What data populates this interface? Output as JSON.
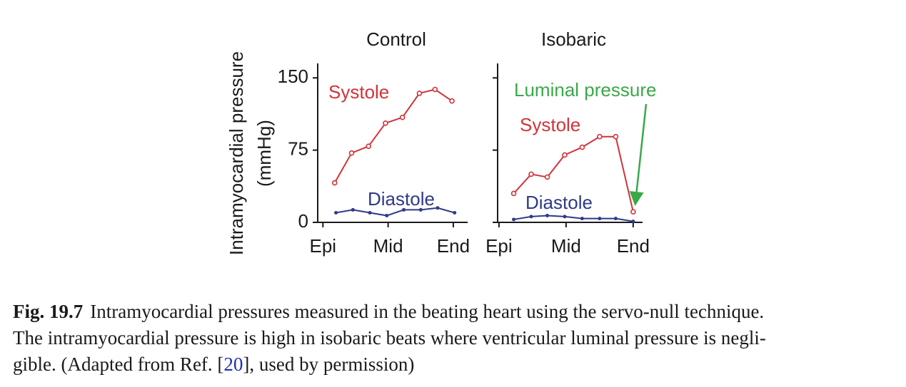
{
  "chart_data": [
    {
      "type": "line",
      "title": "Control",
      "ylabel": [
        "Intramyocardial pressure",
        "(mmHg)"
      ],
      "xlim": [
        -0.04,
        1.11
      ],
      "ylim": [
        0,
        165
      ],
      "xticks": [
        {
          "value": 0,
          "label": "Epi"
        },
        {
          "value": 0.5,
          "label": "Mid"
        },
        {
          "value": 1,
          "label": "End"
        }
      ],
      "yticks": [
        0,
        75,
        150
      ],
      "ytick_labels": true,
      "series": [
        {
          "name": "Systole",
          "color": "#d0343a",
          "marker": "open",
          "x": [
            0.09,
            0.22,
            0.35,
            0.48,
            0.61,
            0.74,
            0.86,
            0.99
          ],
          "values": [
            41,
            72,
            79,
            103,
            109,
            134,
            138,
            126
          ]
        },
        {
          "name": "Diastole",
          "color": "#2f3a86",
          "marker": "filled",
          "x": [
            0.1,
            0.23,
            0.36,
            0.49,
            0.62,
            0.75,
            0.88,
            1.01
          ],
          "values": [
            10,
            13,
            10,
            7,
            13,
            13,
            15,
            10
          ]
        }
      ]
    },
    {
      "type": "line",
      "title": "Isobaric",
      "xlim": [
        -0.01,
        1.07
      ],
      "ylim": [
        0,
        165
      ],
      "xticks": [
        {
          "value": 0,
          "label": "Epi"
        },
        {
          "value": 0.5,
          "label": "Mid"
        },
        {
          "value": 1,
          "label": "End"
        }
      ],
      "yticks": [
        0,
        75,
        150
      ],
      "ytick_labels": false,
      "series": [
        {
          "name": "Luminal pressure",
          "color": "#3aa849",
          "marker": "filled",
          "x": [
            1.0
          ],
          "values": [
            11
          ]
        },
        {
          "name": "Systole",
          "color": "#d0343a",
          "marker": "open",
          "x": [
            0.11,
            0.24,
            0.36,
            0.49,
            0.62,
            0.75,
            0.87,
            1.0
          ],
          "values": [
            30,
            50,
            47,
            70,
            78,
            89,
            89,
            11
          ]
        },
        {
          "name": "Diastole",
          "color": "#2f3a86",
          "marker": "filled",
          "x": [
            0.11,
            0.24,
            0.36,
            0.49,
            0.62,
            0.75,
            0.87,
            1.0
          ],
          "values": [
            3,
            6,
            7,
            6,
            4,
            4,
            4,
            1
          ]
        }
      ]
    }
  ],
  "caption": {
    "label": "Fig. 19.7",
    "lines": [
      "Intramyocardial pressures measured in the beating heart using the servo-null technique.",
      "The intramyocardial pressure is high in isobaric beats where ventricular luminal pressure is negli-"
    ],
    "last": {
      "before": "gible. (Adapted from Ref. [",
      "ref": "20",
      "after": "], used by permission)"
    }
  }
}
